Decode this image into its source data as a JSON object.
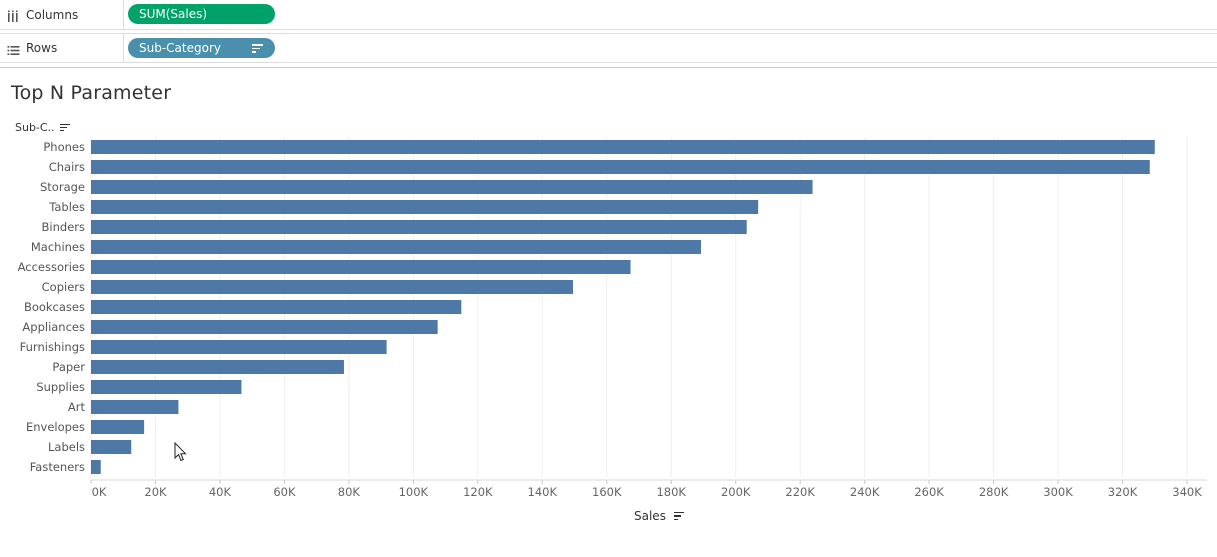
{
  "shelves": {
    "columns": {
      "label": "Columns",
      "pill": "SUM(Sales)",
      "icon": "columns-icon"
    },
    "rows": {
      "label": "Rows",
      "pill": "Sub-Category",
      "icon": "rows-icon"
    }
  },
  "worksheet": {
    "title": "Top N Parameter",
    "row_header": "Sub-C..",
    "x_title": "Sales"
  },
  "colors": {
    "bar": "#4e79a7",
    "columns_pill": "#00a26a",
    "rows_pill": "#4a90ad"
  },
  "chart_data": {
    "type": "bar",
    "orientation": "horizontal",
    "title": "Top N Parameter",
    "xlabel": "Sales",
    "ylabel": "Sub-C..",
    "categories": [
      "Phones",
      "Chairs",
      "Storage",
      "Tables",
      "Binders",
      "Machines",
      "Accessories",
      "Copiers",
      "Bookcases",
      "Appliances",
      "Furnishings",
      "Paper",
      "Supplies",
      "Art",
      "Envelopes",
      "Labels",
      "Fasteners"
    ],
    "values": [
      330007,
      328449,
      223844,
      206966,
      203413,
      189239,
      167380,
      149528,
      114880,
      107532,
      91705,
      78479,
      46674,
      27119,
      16476,
      12486,
      3024
    ],
    "xlim": [
      0,
      340000
    ],
    "xticks": [
      0,
      20000,
      40000,
      60000,
      80000,
      100000,
      120000,
      140000,
      160000,
      180000,
      200000,
      220000,
      240000,
      260000,
      280000,
      300000,
      320000,
      340000
    ],
    "xtick_labels": [
      "0K",
      "20K",
      "40K",
      "60K",
      "80K",
      "100K",
      "120K",
      "140K",
      "160K",
      "180K",
      "200K",
      "220K",
      "240K",
      "260K",
      "280K",
      "300K",
      "320K",
      "340K"
    ],
    "grid": true,
    "legend": "none"
  }
}
